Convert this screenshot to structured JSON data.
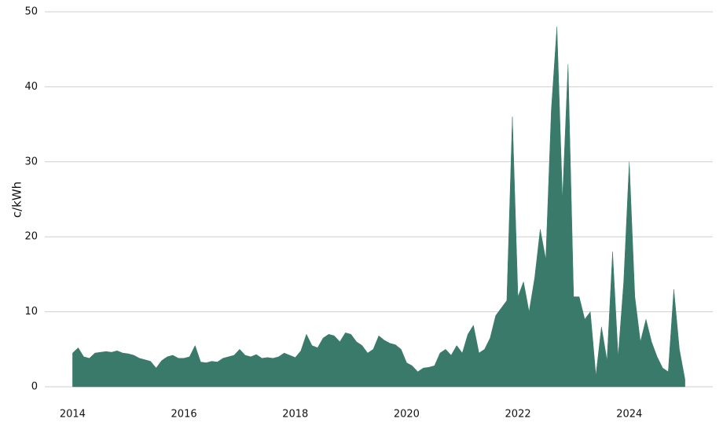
{
  "chart_data": {
    "type": "area",
    "ylabel": "c/kWh",
    "x": [
      2014.0,
      2014.1,
      2014.2,
      2014.3,
      2014.4,
      2014.5,
      2014.6,
      2014.7,
      2014.8,
      2014.9,
      2015.0,
      2015.1,
      2015.2,
      2015.3,
      2015.4,
      2015.5,
      2015.6,
      2015.7,
      2015.8,
      2015.9,
      2016.0,
      2016.1,
      2016.2,
      2016.3,
      2016.4,
      2016.5,
      2016.6,
      2016.7,
      2016.8,
      2016.9,
      2017.0,
      2017.1,
      2017.2,
      2017.3,
      2017.4,
      2017.5,
      2017.6,
      2017.7,
      2017.8,
      2017.9,
      2018.0,
      2018.1,
      2018.2,
      2018.3,
      2018.4,
      2018.5,
      2018.6,
      2018.7,
      2018.8,
      2018.9,
      2019.0,
      2019.1,
      2019.2,
      2019.3,
      2019.4,
      2019.5,
      2019.6,
      2019.7,
      2019.8,
      2019.9,
      2020.0,
      2020.1,
      2020.2,
      2020.3,
      2020.4,
      2020.5,
      2020.6,
      2020.7,
      2020.8,
      2020.9,
      2021.0,
      2021.1,
      2021.2,
      2021.3,
      2021.4,
      2021.5,
      2021.6,
      2021.7,
      2021.8,
      2021.9,
      2022.0,
      2022.1,
      2022.2,
      2022.3,
      2022.4,
      2022.5,
      2022.6,
      2022.7,
      2022.8,
      2022.9,
      2023.0,
      2023.1,
      2023.2,
      2023.3,
      2023.4,
      2023.5,
      2023.6,
      2023.7,
      2023.8,
      2023.9,
      2024.0,
      2024.1,
      2024.2,
      2024.3,
      2024.4,
      2024.5,
      2024.6,
      2024.7,
      2024.8,
      2024.9,
      2025.0
    ],
    "series": [
      {
        "color": "#3a7a6a",
        "values": [
          4.5,
          5.2,
          4.0,
          3.8,
          4.5,
          4.6,
          4.7,
          4.6,
          4.8,
          4.5,
          4.4,
          4.2,
          3.8,
          3.6,
          3.4,
          2.5,
          3.5,
          4.0,
          4.2,
          3.8,
          3.8,
          4.0,
          5.5,
          3.3,
          3.2,
          3.4,
          3.3,
          3.8,
          4.0,
          4.2,
          5.0,
          4.2,
          4.0,
          4.3,
          3.8,
          3.9,
          3.8,
          4.0,
          4.5,
          4.2,
          3.9,
          4.8,
          7.0,
          5.5,
          5.2,
          6.5,
          7.0,
          6.8,
          6.0,
          7.2,
          7.0,
          6.0,
          5.5,
          4.5,
          5.0,
          6.8,
          6.2,
          5.8,
          5.6,
          5.0,
          3.2,
          2.8,
          2.0,
          2.5,
          2.6,
          2.8,
          4.5,
          5.0,
          4.2,
          5.5,
          4.5,
          7.0,
          8.2,
          4.5,
          5.0,
          6.5,
          9.5,
          10.5,
          11.5,
          36.0,
          12.0,
          14.0,
          10.0,
          14.5,
          21.0,
          17.0,
          37.0,
          48.0,
          25.0,
          43.0,
          12.0,
          12.0,
          9.0,
          10.0,
          1.5,
          8.0,
          3.5,
          18.0,
          4.0,
          14.0,
          30.0,
          12.0,
          6.0,
          9.0,
          6.0,
          4.0,
          2.5,
          2.0,
          13.0,
          5.0,
          1.0
        ]
      }
    ],
    "xlim": [
      2013.5,
      2025.5
    ],
    "xticks": [
      2014,
      2016,
      2018,
      2020,
      2022,
      2024
    ],
    "ylim": [
      0,
      50
    ],
    "yticks": [
      0,
      10,
      20,
      30,
      40,
      50
    ],
    "grid": true
  }
}
